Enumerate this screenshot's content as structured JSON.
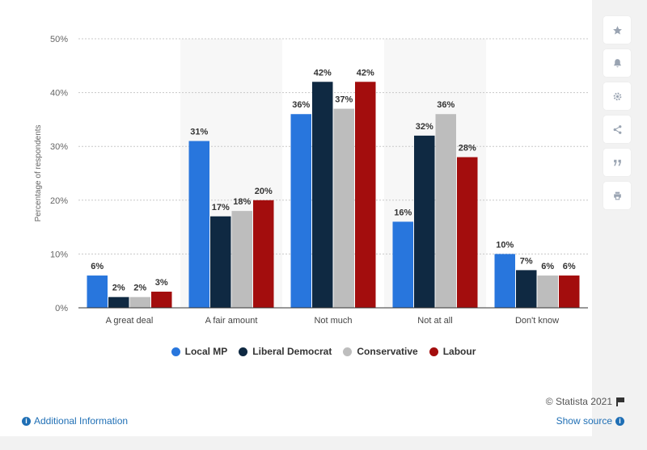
{
  "chart_data": {
    "type": "bar",
    "categories": [
      "A great deal",
      "A fair amount",
      "Not much",
      "Not at all",
      "Don't know"
    ],
    "series": [
      {
        "name": "Local MP",
        "color": "#2876dd",
        "values": [
          6,
          31,
          36,
          16,
          10
        ]
      },
      {
        "name": "Liberal Democrat",
        "color": "#0f2942",
        "values": [
          2,
          17,
          42,
          32,
          7
        ]
      },
      {
        "name": "Conservative",
        "color": "#bdbdbd",
        "values": [
          2,
          18,
          37,
          36,
          6
        ]
      },
      {
        "name": "Labour",
        "color": "#a30d0d",
        "values": [
          3,
          20,
          42,
          28,
          6
        ]
      }
    ],
    "ylabel": "Percentage of respondents",
    "ylim": [
      0,
      50
    ],
    "yticks": [
      "0%",
      "10%",
      "20%",
      "30%",
      "40%",
      "50%"
    ],
    "value_suffix": "%",
    "grid": true,
    "legend_position": "bottom"
  },
  "footer": {
    "credit": "© Statista 2021",
    "additional_info": "Additional Information",
    "show_source": "Show source"
  },
  "sidebar": {
    "icons": [
      "star-icon",
      "bell-icon",
      "gear-icon",
      "share-icon",
      "quote-icon",
      "print-icon"
    ]
  }
}
